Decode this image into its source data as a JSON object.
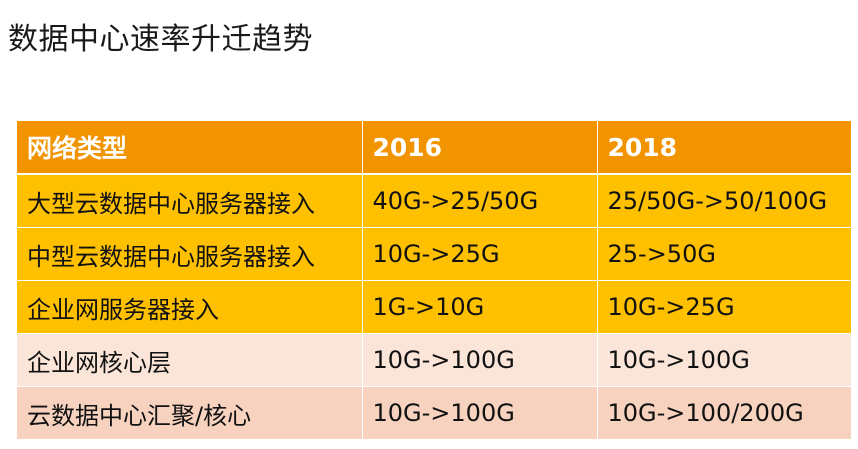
{
  "title": "数据中心速率升迁趋势",
  "table": {
    "headers": [
      "网络类型",
      "2016",
      "2018"
    ],
    "rows": [
      [
        "大型云数据中心服务器接入",
        "40G->25/50G",
        "25/50G->50/100G"
      ],
      [
        "中型云数据中心服务器接入",
        "10G->25G",
        "25->50G"
      ],
      [
        "企业网服务器接入",
        "1G->10G",
        "10G->25G"
      ],
      [
        "企业网核心层",
        "10G->100G",
        "10G->100G"
      ],
      [
        "云数据中心汇聚/核心",
        "10G->100G",
        "10G->100/200G"
      ]
    ]
  },
  "colors": {
    "header_bg": "#f29400",
    "strong_row_bg": "#ffc000",
    "light_row_bg_a": "#fbe5d8",
    "light_row_bg_b": "#f7d3bf",
    "header_text": "#ffffff"
  }
}
